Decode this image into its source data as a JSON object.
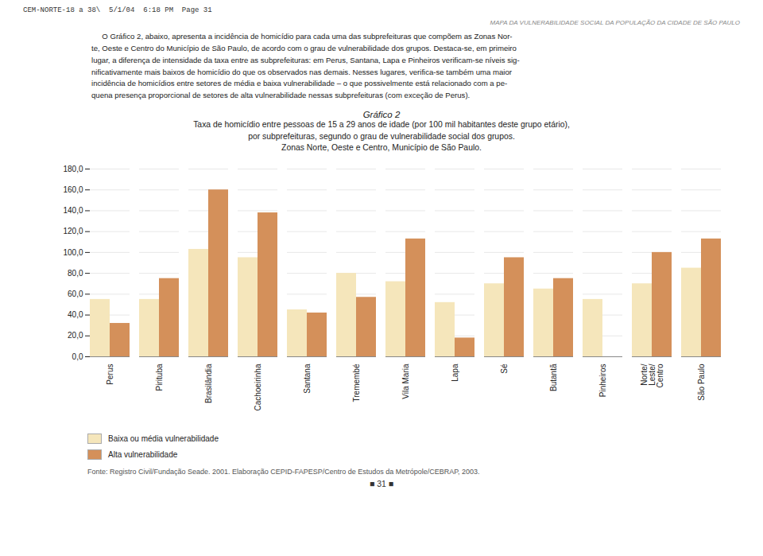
{
  "chart_data": {
    "type": "bar",
    "title": "Gráfico 2",
    "subtitle": [
      "Taxa de homicídio entre pessoas de 15 a 29 anos de idade (por 100 mil habitantes deste grupo etário),",
      "por subprefeituras, segundo o grau de vulnerabilidade social dos grupos.",
      "Zonas Norte, Oeste e Centro, Município de São Paulo."
    ],
    "categories": [
      "Perus",
      "Pirituba",
      "Brasilândia",
      "Cachoeirinha",
      "Santana",
      "Tremembé",
      "Vila Maria",
      "Lapa",
      "Sé",
      "Butantã",
      "Pinheiros",
      "Norte/\nLeste/\nCentro",
      "São Paulo"
    ],
    "series": [
      {
        "name": "Baixa ou média vulnerabilidade",
        "color": "#f5e6bb",
        "values": [
          55,
          55,
          103,
          95,
          45,
          80,
          72,
          52,
          70,
          65,
          55,
          70,
          85
        ]
      },
      {
        "name": "Alta vulnerabilidade",
        "color": "#d4905a",
        "values": [
          32,
          75,
          160,
          138,
          42,
          57,
          113,
          18,
          95,
          75,
          0,
          100,
          113
        ]
      }
    ],
    "ylim": [
      0,
      180
    ],
    "yticks": [
      {
        "value": 0,
        "label": "0,0"
      },
      {
        "value": 20,
        "label": "20,0"
      },
      {
        "value": 40,
        "label": "40,0"
      },
      {
        "value": 60,
        "label": "60,0"
      },
      {
        "value": 80,
        "label": "80,0"
      },
      {
        "value": 100,
        "label": "100,0"
      },
      {
        "value": 120,
        "label": "120,0"
      },
      {
        "value": 140,
        "label": "140,0"
      },
      {
        "value": 160,
        "label": "160,0"
      },
      {
        "value": 180,
        "label": "180,0"
      }
    ],
    "grid": true,
    "legend": "bottom left",
    "annotations": [
      "CEM-NORTE-18 a 38\\  5/1/04  6:18 PM  Page 31",
      "MAPA DA VULNERABILIDADE SOCIAL DA POPULAÇÃO DA CIDADE DE SÃO PAULO",
      "     O Gráfico 2, abaixo, apresenta a incidência de homicídio para cada uma das subprefeituras que compõem as Zonas Nor-\nte, Oeste e Centro do Município de São Paulo, de acordo com o grau de vulnerabilidade dos grupos. Destaca-se, em primeiro\nlugar, a diferença de intensidade da taxa entre as subprefeituras: em Perus, Santana, Lapa e Pinheiros verificam-se níveis sig-\nnificativamente mais baixos de homicídio do que os observados nas demais. Nesses lugares, verifica-se também uma maior\nincidência de homicídios entre setores de média e baixa vulnerabilidade – o que possivelmente está relacionado com a pe-\nquena presença proporcional de setores de alta vulnerabilidade nessas subprefeituras (com exceção de Perus).",
      "Fonte: Registro Civil/Fundação Seade. 2001. Elaboração CEPID-FAPESP/Centro de Estudos da Metrópole/CEBRAP, 2003.",
      "■ 31 ■"
    ]
  }
}
